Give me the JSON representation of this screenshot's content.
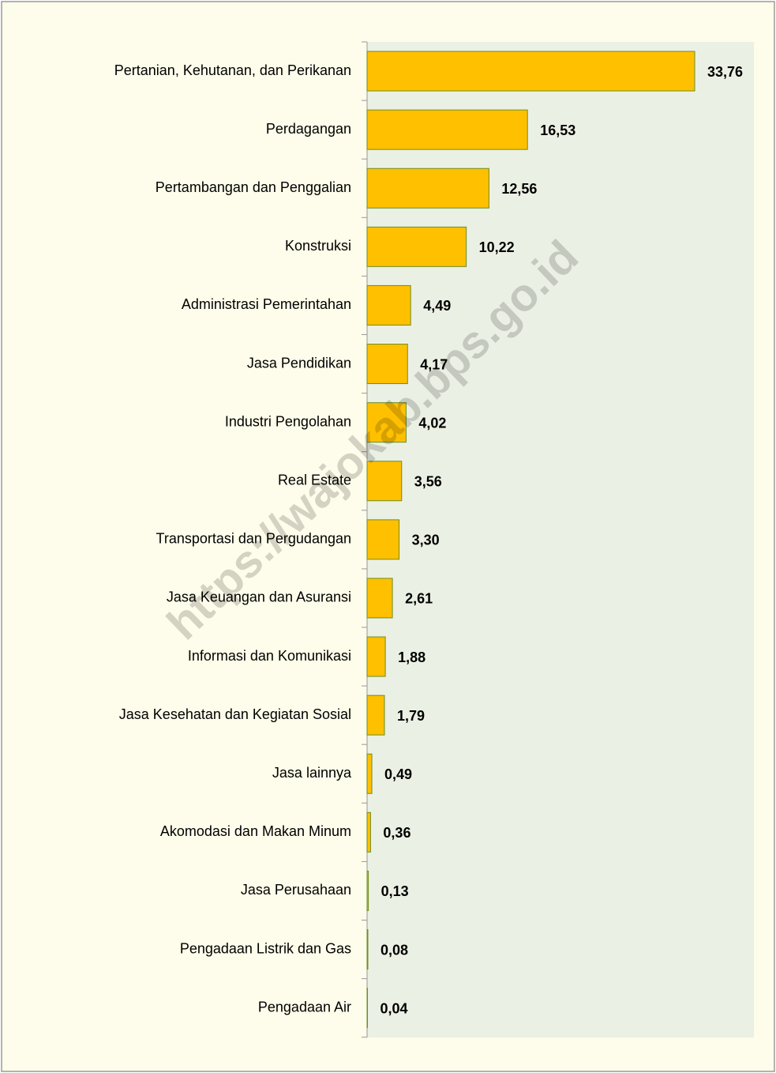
{
  "chart_data": {
    "type": "barh",
    "categories": [
      "Pertanian, Kehutanan, dan Perikanan",
      "Perdagangan",
      "Pertambangan dan Penggalian",
      "Konstruksi",
      "Administrasi Pemerintahan",
      "Jasa Pendidikan",
      "Industri Pengolahan",
      "Real Estate",
      "Transportasi dan Pergudangan",
      "Jasa Keuangan dan Asuransi",
      "Informasi dan Komunikasi",
      "Jasa Kesehatan dan Kegiatan Sosial",
      "Jasa lainnya",
      "Akomodasi dan Makan Minum",
      "Jasa Perusahaan",
      "Pengadaan Listrik dan Gas",
      "Pengadaan Air"
    ],
    "values": [
      33.76,
      16.53,
      12.56,
      10.22,
      4.49,
      4.17,
      4.02,
      3.56,
      3.3,
      2.61,
      1.88,
      1.79,
      0.49,
      0.36,
      0.13,
      0.08,
      0.04
    ],
    "value_labels": [
      "33,76",
      "16,53",
      "12,56",
      "10,22",
      "4,49",
      "4,17",
      "4,02",
      "3,56",
      "3,30",
      "2,61",
      "1,88",
      "1,79",
      "0,49",
      "0,36",
      "0,13",
      "0,08",
      "0,04"
    ],
    "color": "#ffc000",
    "watermark": "https://wajokab.bps.go.id"
  }
}
